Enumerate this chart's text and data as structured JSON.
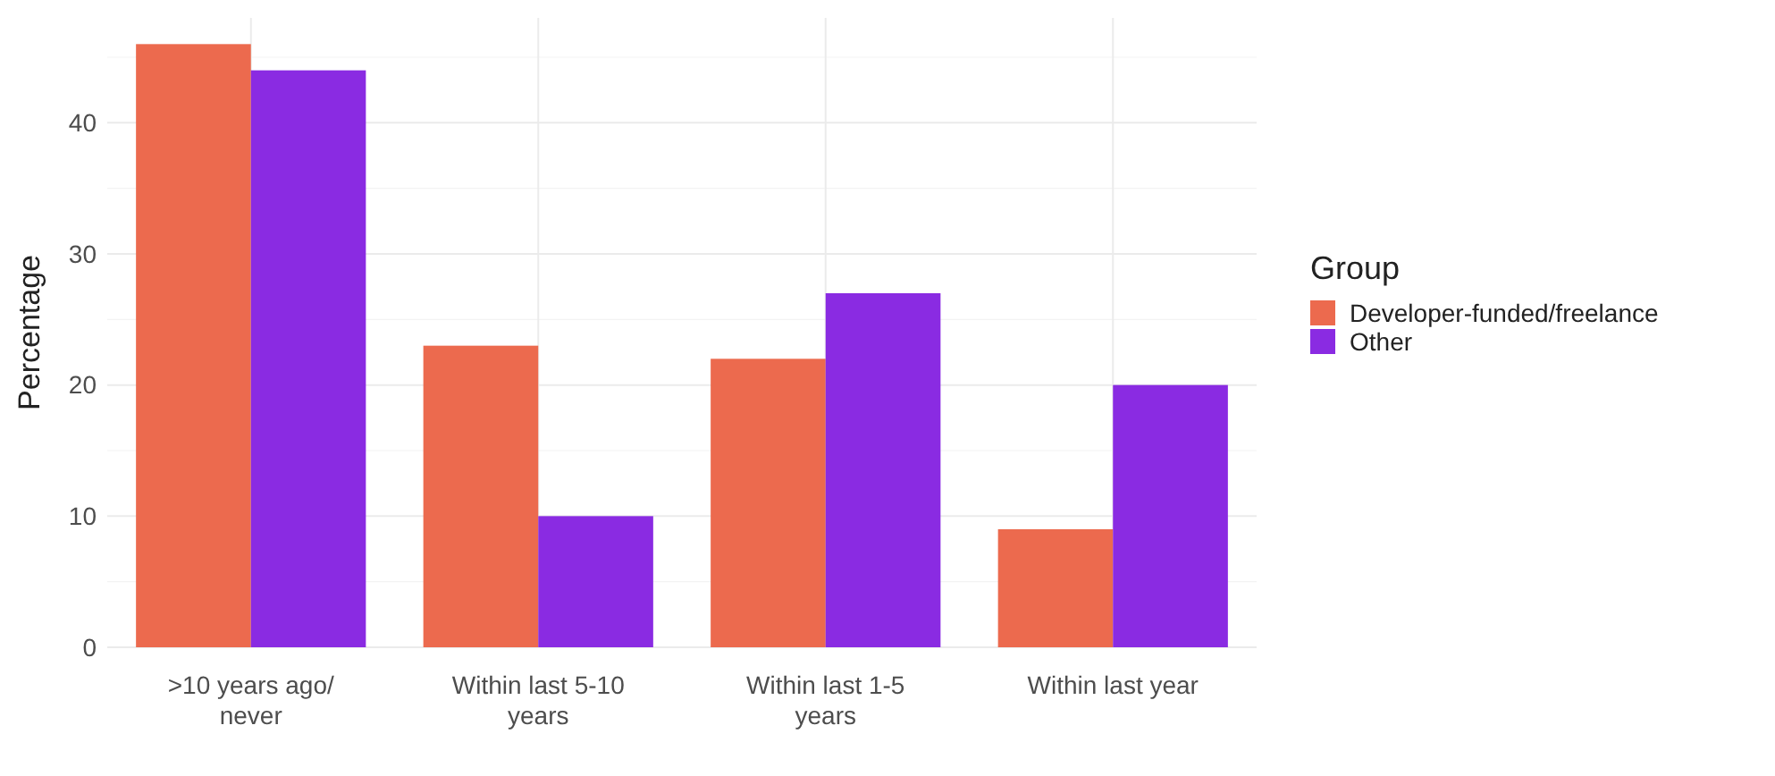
{
  "chart_data": {
    "type": "bar",
    "ylabel": "Percentage",
    "legend_title": "Group",
    "legend": "right",
    "grid": true,
    "categories": [
      ">10 years ago/\nnever",
      "Within last 5-10\nyears",
      "Within last 1-5\nyears",
      "Within last year"
    ],
    "ylim": [
      0,
      48
    ],
    "yticks": [
      0,
      10,
      20,
      30,
      40
    ],
    "series": [
      {
        "name": "Developer-funded/freelance",
        "color": "#ec6a4e",
        "values": [
          46,
          23,
          22,
          9
        ]
      },
      {
        "name": "Other",
        "color": "#8a2be2",
        "values": [
          44,
          10,
          27,
          20
        ]
      }
    ]
  }
}
